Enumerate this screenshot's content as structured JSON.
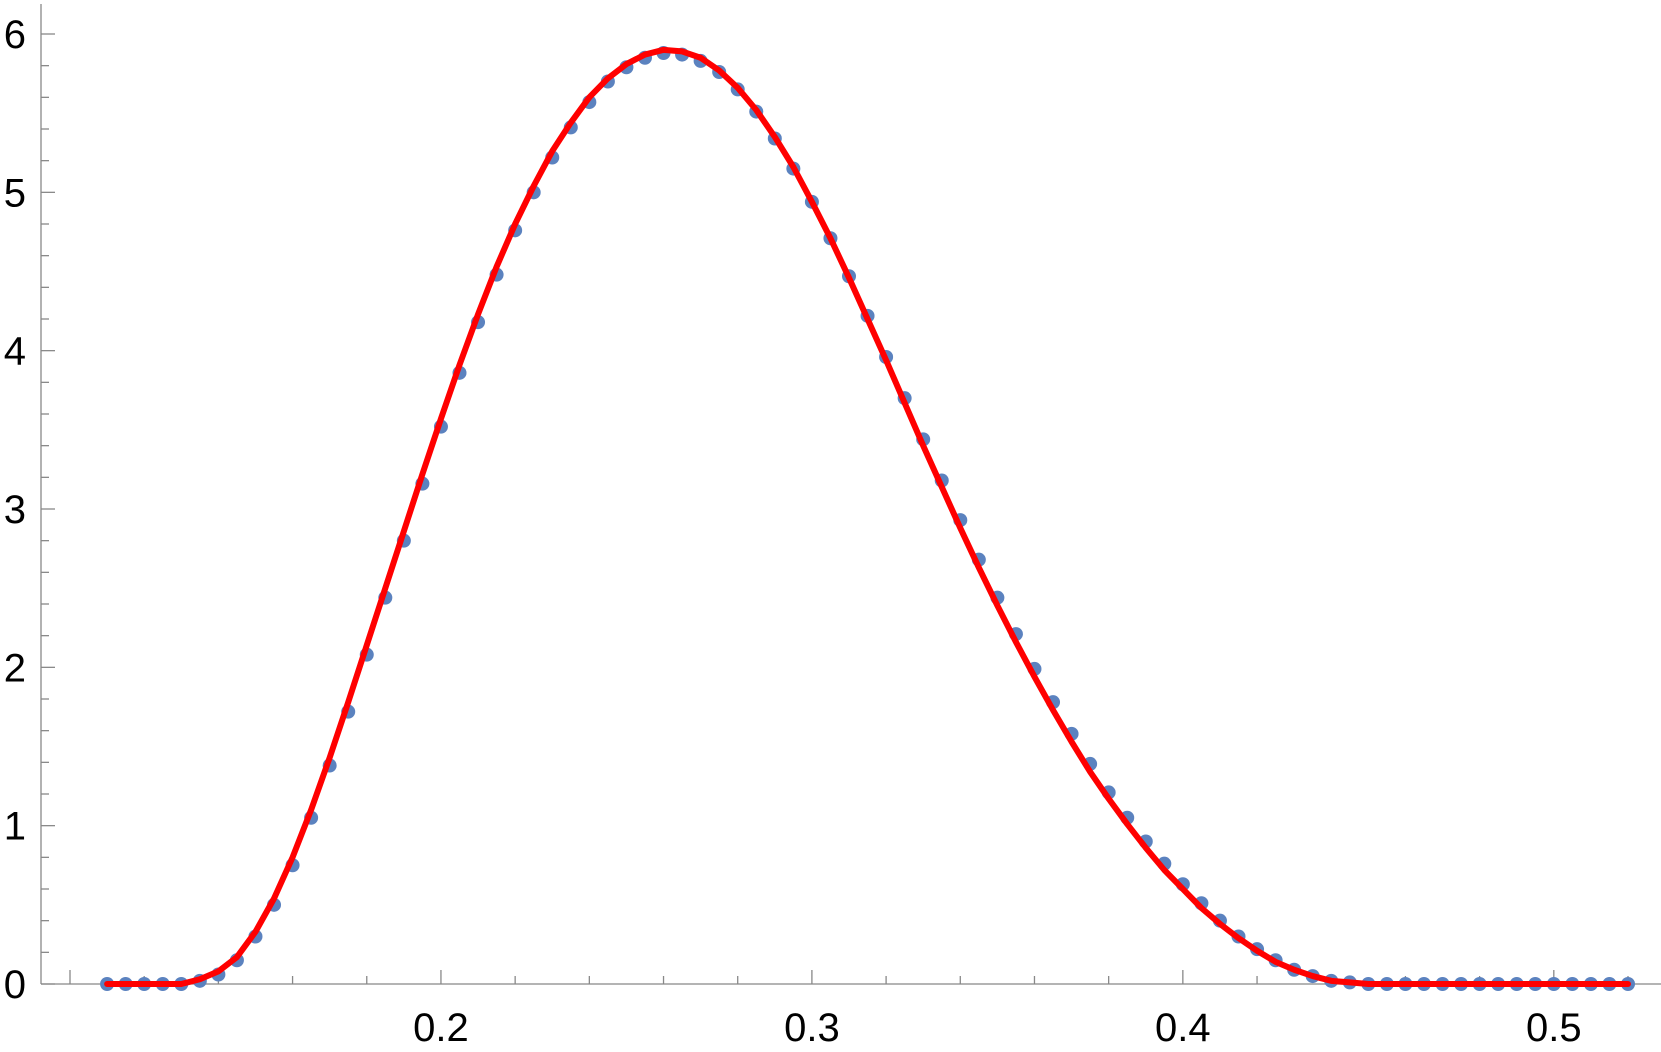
{
  "chart_data": {
    "type": "scatter",
    "title": "",
    "xlabel": "",
    "ylabel": "",
    "xlim": [
      0.1,
      0.52
    ],
    "ylim": [
      0,
      6
    ],
    "grid": false,
    "legend": "none",
    "x_ticks": [
      {
        "value": 0.2,
        "label": "0.2"
      },
      {
        "value": 0.3,
        "label": "0.3"
      },
      {
        "value": 0.4,
        "label": "0.4"
      },
      {
        "value": 0.5,
        "label": "0.5"
      }
    ],
    "y_ticks": [
      {
        "value": 0,
        "label": "0"
      },
      {
        "value": 1,
        "label": "1"
      },
      {
        "value": 2,
        "label": "2"
      },
      {
        "value": 3,
        "label": "3"
      },
      {
        "value": 4,
        "label": "4"
      },
      {
        "value": 5,
        "label": "5"
      },
      {
        "value": 6,
        "label": "6"
      }
    ],
    "x_minor_step": 0.02,
    "y_minor_step": 0.2,
    "series": [
      {
        "kind": "points",
        "color": "#5b82bf",
        "x": [
          0.11,
          0.115,
          0.12,
          0.125,
          0.13,
          0.135,
          0.14,
          0.145,
          0.15,
          0.155,
          0.16,
          0.165,
          0.17,
          0.175,
          0.18,
          0.185,
          0.19,
          0.195,
          0.2,
          0.205,
          0.21,
          0.215,
          0.22,
          0.225,
          0.23,
          0.235,
          0.24,
          0.245,
          0.25,
          0.255,
          0.26,
          0.265,
          0.27,
          0.275,
          0.28,
          0.285,
          0.29,
          0.295,
          0.3,
          0.305,
          0.31,
          0.315,
          0.32,
          0.325,
          0.33,
          0.335,
          0.34,
          0.345,
          0.35,
          0.355,
          0.36,
          0.365,
          0.37,
          0.375,
          0.38,
          0.385,
          0.39,
          0.395,
          0.4,
          0.405,
          0.41,
          0.415,
          0.42,
          0.425,
          0.43,
          0.435,
          0.44,
          0.445,
          0.45,
          0.455,
          0.46,
          0.465,
          0.47,
          0.475,
          0.48,
          0.485,
          0.49,
          0.495,
          0.5,
          0.505,
          0.51,
          0.515,
          0.52
        ],
        "y": [
          0,
          0,
          0,
          0,
          0,
          0.02,
          0.06,
          0.15,
          0.3,
          0.5,
          0.75,
          1.05,
          1.38,
          1.72,
          2.08,
          2.44,
          2.8,
          3.16,
          3.52,
          3.86,
          4.18,
          4.48,
          4.76,
          5.0,
          5.22,
          5.41,
          5.57,
          5.7,
          5.79,
          5.85,
          5.88,
          5.87,
          5.83,
          5.76,
          5.65,
          5.51,
          5.34,
          5.15,
          4.94,
          4.71,
          4.47,
          4.22,
          3.96,
          3.7,
          3.44,
          3.18,
          2.93,
          2.68,
          2.44,
          2.21,
          1.99,
          1.78,
          1.58,
          1.39,
          1.21,
          1.05,
          0.9,
          0.76,
          0.63,
          0.51,
          0.4,
          0.3,
          0.22,
          0.15,
          0.09,
          0.05,
          0.02,
          0.01,
          0,
          0,
          0,
          0,
          0,
          0,
          0,
          0,
          0,
          0,
          0,
          0,
          0,
          0,
          0
        ]
      },
      {
        "kind": "line",
        "color": "#ff0000",
        "x": [
          0.11,
          0.115,
          0.12,
          0.125,
          0.13,
          0.135,
          0.14,
          0.145,
          0.15,
          0.155,
          0.16,
          0.165,
          0.17,
          0.175,
          0.18,
          0.185,
          0.19,
          0.195,
          0.2,
          0.205,
          0.21,
          0.215,
          0.22,
          0.225,
          0.23,
          0.235,
          0.24,
          0.245,
          0.25,
          0.255,
          0.26,
          0.265,
          0.27,
          0.275,
          0.28,
          0.285,
          0.29,
          0.295,
          0.3,
          0.305,
          0.31,
          0.315,
          0.32,
          0.325,
          0.33,
          0.335,
          0.34,
          0.345,
          0.35,
          0.355,
          0.36,
          0.365,
          0.37,
          0.375,
          0.38,
          0.385,
          0.39,
          0.395,
          0.4,
          0.405,
          0.41,
          0.415,
          0.42,
          0.425,
          0.43,
          0.435,
          0.44,
          0.445,
          0.45,
          0.455,
          0.46,
          0.465,
          0.47,
          0.475,
          0.48,
          0.485,
          0.49,
          0.495,
          0.5,
          0.505,
          0.51,
          0.515,
          0.52
        ],
        "y": [
          0,
          0,
          0,
          0,
          0,
          0.03,
          0.08,
          0.17,
          0.33,
          0.54,
          0.8,
          1.1,
          1.43,
          1.78,
          2.14,
          2.5,
          2.86,
          3.22,
          3.57,
          3.91,
          4.23,
          4.53,
          4.8,
          5.04,
          5.26,
          5.44,
          5.6,
          5.72,
          5.81,
          5.87,
          5.9,
          5.89,
          5.85,
          5.77,
          5.66,
          5.52,
          5.35,
          5.16,
          4.94,
          4.71,
          4.46,
          4.2,
          3.94,
          3.67,
          3.4,
          3.14,
          2.88,
          2.63,
          2.39,
          2.16,
          1.94,
          1.73,
          1.53,
          1.34,
          1.17,
          1.01,
          0.86,
          0.72,
          0.6,
          0.48,
          0.38,
          0.29,
          0.21,
          0.14,
          0.09,
          0.05,
          0.02,
          0.01,
          0,
          0,
          0,
          0,
          0,
          0,
          0,
          0,
          0,
          0,
          0,
          0,
          0,
          0,
          0
        ]
      }
    ]
  }
}
